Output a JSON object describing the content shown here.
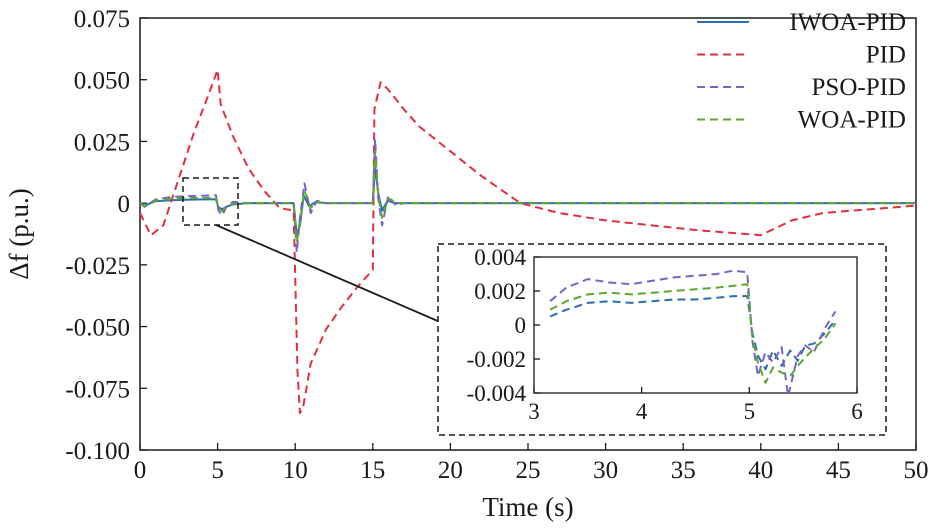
{
  "chart_data": [
    {
      "type": "line",
      "xlabel": "Time (s)",
      "ylabel": "Δf (p.u.)",
      "xlim": [
        0,
        50
      ],
      "ylim": [
        -0.1,
        0.075
      ],
      "xticks": [
        0,
        5,
        10,
        15,
        20,
        25,
        30,
        35,
        40,
        45,
        50
      ],
      "xtick_labels": [
        "0",
        "5",
        "10",
        "15",
        "20",
        "25",
        "30",
        "35",
        "40",
        "45",
        "50"
      ],
      "yticks": [
        0.075,
        0.05,
        0.025,
        0,
        -0.025,
        -0.05,
        -0.075,
        -0.1
      ],
      "ytick_labels": [
        "0.075",
        "0.050",
        "0.025",
        "0",
        "-0.025",
        "-0.050",
        "-0.075",
        "-0.100"
      ],
      "legend_position": "top-right",
      "grid": false,
      "series": [
        {
          "name": "IWOA-PID",
          "color": "#2b6fb0",
          "dash": "solid",
          "x": [
            0,
            0.3,
            1,
            2,
            3,
            4,
            4.9,
            5.05,
            5.3,
            5.6,
            6,
            7,
            9.9,
            10.1,
            10.3,
            10.55,
            10.9,
            11.3,
            12,
            15,
            15.15,
            15.35,
            15.6,
            15.95,
            16.4,
            17,
            20,
            30,
            40,
            50
          ],
          "y": [
            0,
            -0.001,
            0.0008,
            0.0012,
            0.0014,
            0.0015,
            0.0016,
            -0.0018,
            -0.0024,
            -0.0014,
            -0.0005,
            0,
            0,
            -0.013,
            -0.009,
            0.003,
            -0.0012,
            0.0004,
            0,
            0,
            0.015,
            0.004,
            -0.003,
            0.001,
            0,
            0,
            0,
            0,
            0,
            0
          ]
        },
        {
          "name": "PID",
          "color": "#e03040",
          "dash": "dashed",
          "x": [
            0,
            0.7,
            1.5,
            2.5,
            3.5,
            4.3,
            5,
            5.2,
            6,
            7,
            8,
            9,
            9.9,
            10.15,
            10.3,
            10.5,
            11,
            12,
            13,
            14,
            15,
            15.1,
            15.5,
            16,
            17,
            18,
            20,
            22,
            24.5,
            27,
            30,
            33,
            36,
            39,
            40,
            41,
            42,
            44,
            46,
            48,
            50
          ],
          "y": [
            -0.004,
            -0.013,
            -0.009,
            0.01,
            0.029,
            0.042,
            0.054,
            0.04,
            0.027,
            0.014,
            0.005,
            -0.002,
            -0.003,
            -0.068,
            -0.085,
            -0.083,
            -0.065,
            -0.051,
            -0.042,
            -0.034,
            -0.027,
            0.038,
            0.049,
            0.046,
            0.038,
            0.031,
            0.021,
            0.011,
            0,
            -0.004,
            -0.007,
            -0.009,
            -0.011,
            -0.0125,
            -0.013,
            -0.01,
            -0.007,
            -0.004,
            -0.003,
            -0.002,
            -0.001
          ]
        },
        {
          "name": "PSO-PID",
          "color": "#7a62c8",
          "dash": "dashed",
          "x": [
            0,
            0.3,
            1,
            2,
            3,
            4,
            4.9,
            5.05,
            5.3,
            5.6,
            6,
            7,
            9.9,
            10.1,
            10.3,
            10.6,
            11,
            11.4,
            12,
            15,
            15.15,
            15.35,
            15.6,
            16,
            16.5,
            17,
            20,
            30,
            40,
            50
          ],
          "y": [
            0,
            -0.0015,
            0.0015,
            0.0025,
            0.0028,
            0.003,
            0.0032,
            -0.003,
            -0.005,
            -0.001,
            0.0005,
            0,
            0,
            -0.02,
            -0.006,
            0.008,
            -0.004,
            0.001,
            0,
            0,
            0.026,
            0.002,
            -0.009,
            0.003,
            -0.001,
            0,
            0,
            0,
            0,
            0
          ]
        },
        {
          "name": "WOA-PID",
          "color": "#5aa832",
          "dash": "dashed",
          "x": [
            0,
            0.3,
            1,
            2,
            3,
            4,
            4.9,
            5.05,
            5.3,
            5.6,
            6,
            7,
            9.9,
            10.1,
            10.3,
            10.6,
            11,
            11.4,
            12,
            15,
            15.15,
            15.35,
            15.6,
            16,
            16.5,
            17,
            20,
            30,
            40,
            50
          ],
          "y": [
            0,
            -0.0012,
            0.001,
            0.0017,
            0.002,
            0.0021,
            0.0022,
            -0.0022,
            -0.0032,
            -0.0015,
            -0.0003,
            0,
            0,
            -0.016,
            -0.007,
            0.005,
            -0.002,
            0.0005,
            0,
            0,
            0.021,
            0.003,
            -0.006,
            0.002,
            0,
            0,
            0,
            0,
            0,
            0
          ]
        }
      ]
    },
    {
      "type": "line",
      "role": "inset",
      "xlim": [
        3,
        6
      ],
      "ylim": [
        -0.004,
        0.004
      ],
      "xticks": [
        3,
        4,
        5,
        6
      ],
      "xtick_labels": [
        "3",
        "4",
        "5",
        "6"
      ],
      "yticks": [
        0.004,
        0.002,
        0,
        -0.002,
        -0.004
      ],
      "ytick_labels": [
        "0.004",
        "0.002",
        "0",
        "-0.002",
        "-0.004"
      ],
      "series": [
        {
          "name": "IWOA-PID",
          "color": "#2b6fb0",
          "dash": "dashed",
          "x": [
            3.15,
            3.3,
            3.5,
            3.7,
            3.9,
            4.1,
            4.3,
            4.5,
            4.7,
            4.85,
            4.98,
            5.03,
            5.08,
            5.15,
            5.22,
            5.3,
            5.38,
            5.45,
            5.52,
            5.6,
            5.7,
            5.8
          ],
          "y": [
            0.0005,
            0.0009,
            0.0013,
            0.0014,
            0.0013,
            0.0014,
            0.0015,
            0.0015,
            0.0016,
            0.0017,
            0.0017,
            -0.0005,
            -0.0018,
            -0.0026,
            -0.0015,
            -0.0024,
            -0.0015,
            -0.0021,
            -0.0012,
            -0.0011,
            -0.0005,
            0.0003
          ]
        },
        {
          "name": "PSO-PID",
          "color": "#7a62c8",
          "dash": "dashed",
          "x": [
            3.15,
            3.3,
            3.5,
            3.7,
            3.9,
            4.1,
            4.3,
            4.5,
            4.7,
            4.85,
            4.98,
            5.03,
            5.08,
            5.15,
            5.22,
            5.3,
            5.36,
            5.45,
            5.52,
            5.6,
            5.7,
            5.8
          ],
          "y": [
            0.0014,
            0.0022,
            0.0027,
            0.0025,
            0.0024,
            0.0026,
            0.0028,
            0.0029,
            0.003,
            0.0032,
            0.0031,
            -0.001,
            -0.003,
            -0.0016,
            -0.0022,
            -0.0013,
            -0.0042,
            -0.0018,
            -0.0012,
            -0.0016,
            -0.0002,
            0.0008
          ]
        },
        {
          "name": "WOA-PID",
          "color": "#5aa832",
          "dash": "dashed",
          "x": [
            3.15,
            3.3,
            3.5,
            3.7,
            3.9,
            4.1,
            4.3,
            4.5,
            4.7,
            4.85,
            4.98,
            5.03,
            5.08,
            5.15,
            5.22,
            5.3,
            5.38,
            5.45,
            5.52,
            5.6,
            5.7,
            5.8
          ],
          "y": [
            0.0009,
            0.0014,
            0.0018,
            0.0019,
            0.0018,
            0.0019,
            0.002,
            0.0021,
            0.0022,
            0.0023,
            0.0024,
            -0.0008,
            -0.0022,
            -0.0034,
            -0.0025,
            -0.0028,
            -0.003,
            -0.0024,
            -0.0019,
            -0.0014,
            -0.0008,
            0.0001
          ]
        }
      ]
    }
  ]
}
